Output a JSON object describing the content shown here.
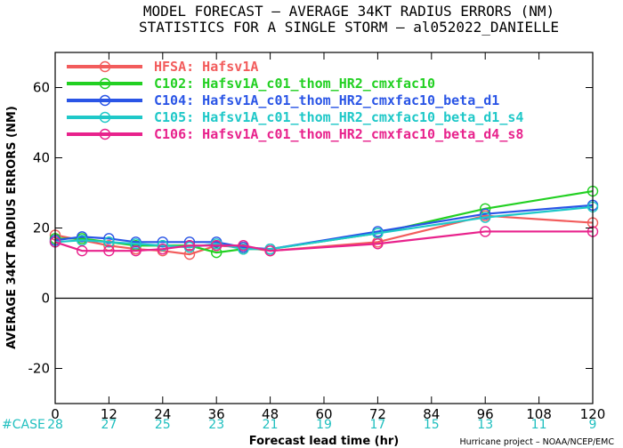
{
  "chart_data": {
    "type": "line",
    "title": "MODEL FORECAST – AVERAGE 34KT RADIUS ERRORS (NM)",
    "subtitle": "STATISTICS FOR A SINGLE STORM – al052022_DANIELLE",
    "xlabel": "Forecast lead time (hr)",
    "ylabel": "AVERAGE 34KT RADIUS ERRORS (NM)",
    "xlim": [
      0,
      120
    ],
    "ylim": [
      -30,
      70
    ],
    "xticks": [
      0,
      12,
      24,
      36,
      48,
      60,
      72,
      84,
      96,
      108,
      120
    ],
    "yticks": [
      -20,
      0,
      20,
      40,
      60
    ],
    "zero_line": true,
    "legend_position": "top-left",
    "series": [
      {
        "name": "HFSA:",
        "desc": "Hafsv1A",
        "color": "#f25c5c",
        "x": [
          0,
          6,
          12,
          18,
          24,
          30,
          36,
          42,
          48,
          72,
          96,
          120
        ],
        "y": [
          18,
          16.5,
          15,
          14,
          13.5,
          12.5,
          15,
          14.5,
          13.5,
          16,
          23.5,
          21.5
        ]
      },
      {
        "name": "C102:",
        "desc": "Hafsv1A_c01_thom_HR2_cmxfac10",
        "color": "#22d022",
        "x": [
          0,
          6,
          12,
          18,
          24,
          30,
          36,
          42,
          48,
          72,
          96,
          120
        ],
        "y": [
          17,
          17,
          16,
          15,
          15,
          15,
          13,
          14,
          14,
          18.5,
          25.5,
          30.5
        ]
      },
      {
        "name": "C104:",
        "desc": "Hafsv1A_c01_thom_HR2_cmxfac10_beta_d1",
        "color": "#2a55e6",
        "x": [
          0,
          6,
          12,
          18,
          24,
          30,
          36,
          42,
          48,
          72,
          96,
          120
        ],
        "y": [
          16.5,
          17.5,
          17,
          16,
          16,
          16,
          16,
          14.5,
          14,
          19,
          24,
          26.5
        ]
      },
      {
        "name": "C105:",
        "desc": "Hafsv1A_c01_thom_HR2_cmxfac10_beta_d1_s4",
        "color": "#1fc8c8",
        "x": [
          0,
          6,
          12,
          18,
          24,
          30,
          36,
          42,
          48,
          72,
          96,
          120
        ],
        "y": [
          16,
          16.5,
          16,
          15.5,
          15,
          14.5,
          15.5,
          14,
          14,
          18.5,
          23,
          26
        ]
      },
      {
        "name": "C106:",
        "desc": "Hafsv1A_c01_thom_HR2_cmxfac10_beta_d4_s8",
        "color": "#e8228c",
        "x": [
          0,
          6,
          12,
          18,
          24,
          30,
          36,
          42,
          48,
          72,
          96,
          120
        ],
        "y": [
          16,
          13.5,
          13.5,
          13.5,
          14,
          15,
          15,
          15,
          13.5,
          15.5,
          19,
          19
        ]
      }
    ],
    "case_label": "#CASE",
    "cases": [
      {
        "x": 0,
        "n": "28"
      },
      {
        "x": 12,
        "n": "27"
      },
      {
        "x": 24,
        "n": "25"
      },
      {
        "x": 36,
        "n": "23"
      },
      {
        "x": 48,
        "n": "21"
      },
      {
        "x": 60,
        "n": "19"
      },
      {
        "x": 72,
        "n": "17"
      },
      {
        "x": 84,
        "n": "15"
      },
      {
        "x": 96,
        "n": "13"
      },
      {
        "x": 108,
        "n": "11"
      },
      {
        "x": 120,
        "n": "9"
      }
    ],
    "credit": "Hurricane project – NOAA/NCEP/EMC"
  }
}
